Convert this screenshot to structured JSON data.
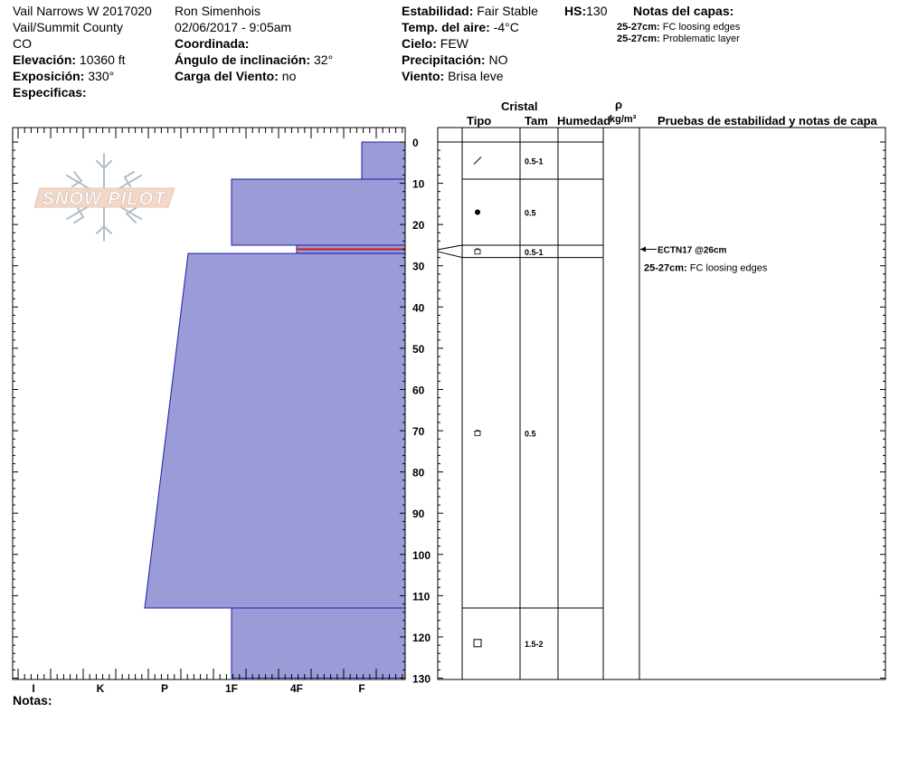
{
  "header": {
    "location": "Vail Narrows W 2017020",
    "area": "Vail/Summit County",
    "state": "CO",
    "elevation_label": "Elevación:",
    "elevation_value": "10360 ft",
    "aspect_label": "Exposición:",
    "aspect_value": "330°",
    "specifics_label": "Especificas:",
    "observer": "Ron Simenhois",
    "datetime": "02/06/2017 - 9:05am",
    "coord_label": "Coordinada:",
    "slope_label": "Ángulo de inclinación:",
    "slope_value": "32°",
    "wind_load_label": "Carga del Viento:",
    "wind_load_value": "no",
    "stability_label": "Estabilidad:",
    "stability_value": "Fair Stable",
    "hs_label": "HS:",
    "hs_value": "130",
    "air_temp_label": "Temp. del aire:",
    "air_temp_value": "-4°C",
    "sky_label": "Cielo:",
    "sky_value": "FEW",
    "precip_label": "Precipitación:",
    "precip_value": "NO",
    "wind_label": "Viento:",
    "wind_value": "Brisa leve",
    "layer_notes_label": "Notas del capas:",
    "layer_notes": [
      {
        "range": "25-27cm:",
        "text": "FC loosing edges"
      },
      {
        "range": "25-27cm:",
        "text": "Problematic layer"
      }
    ]
  },
  "logo_text": "SNOW PILOT",
  "columns": {
    "crystal": "Cristal",
    "type": "Tipo",
    "size": "Tam",
    "moisture": "Humedad",
    "rho": "ρ",
    "density_unit": "kg/m³",
    "tests": "Pruebas de estabilidad y notas de capa"
  },
  "footer": {
    "notes_label": "Notas:"
  },
  "chart_data": {
    "type": "bar",
    "orientation": "horizontal",
    "x_categories": [
      "I",
      "K",
      "P",
      "1F",
      "4F",
      "F"
    ],
    "x_axis_note": "hand hardness, harder to the left",
    "y_ticks": [
      0,
      10,
      20,
      30,
      40,
      50,
      60,
      70,
      80,
      90,
      100,
      110,
      120,
      130
    ],
    "ylim": [
      0,
      130
    ],
    "y_unit": "cm from surface",
    "hardness_layers": [
      {
        "top": 0,
        "bottom": 9,
        "hardness_top": "F",
        "hardness_bottom": "F"
      },
      {
        "top": 9,
        "bottom": 25,
        "hardness_top": "1F",
        "hardness_bottom": "1F"
      },
      {
        "top": 25,
        "bottom": 27,
        "hardness_top": "4F",
        "hardness_bottom": "4F",
        "problematic": true
      },
      {
        "top": 27,
        "bottom": 113,
        "hardness_top": "P+",
        "hardness_bottom": "P-"
      },
      {
        "top": 113,
        "bottom": 130,
        "hardness_top": "1F",
        "hardness_bottom": "1F"
      }
    ],
    "crystal_layers": [
      {
        "top": 0,
        "bottom": 9,
        "type": "decomposing-fragments",
        "size": "0.5-1"
      },
      {
        "top": 9,
        "bottom": 25,
        "type": "rounded",
        "size": "0.5"
      },
      {
        "top": 25,
        "bottom": 28,
        "type": "faceted-rounded",
        "size": "0.5-1"
      },
      {
        "top": 28,
        "bottom": 113,
        "type": "faceted-rounded",
        "size": "0.5"
      },
      {
        "top": 113,
        "bottom": 130,
        "type": "faceted",
        "size": "1.5-2"
      }
    ],
    "stability_tests": [
      {
        "depth": 26,
        "label": "ECTN17 @26cm"
      }
    ],
    "layer_comments": [
      {
        "depth": 26,
        "range": "25-27cm:",
        "text": "FC loosing edges"
      }
    ]
  }
}
